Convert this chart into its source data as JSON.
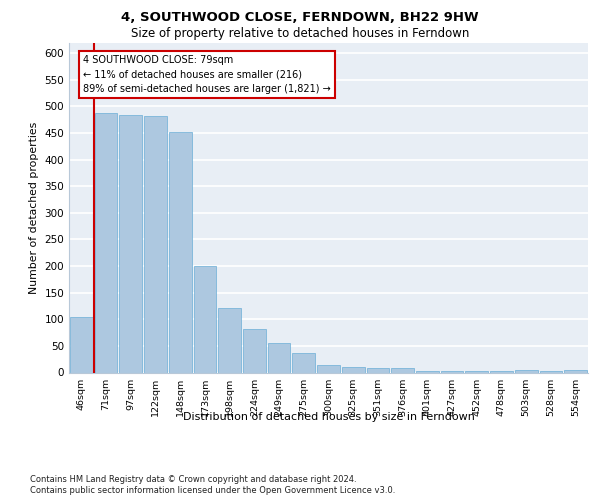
{
  "title1": "4, SOUTHWOOD CLOSE, FERNDOWN, BH22 9HW",
  "title2": "Size of property relative to detached houses in Ferndown",
  "xlabel": "Distribution of detached houses by size in Ferndown",
  "ylabel": "Number of detached properties",
  "footnote1": "Contains HM Land Registry data © Crown copyright and database right 2024.",
  "footnote2": "Contains public sector information licensed under the Open Government Licence v3.0.",
  "bar_color": "#adc8e0",
  "bar_edge_color": "#6baed6",
  "bg_color": "#e8eef5",
  "grid_color": "#ffffff",
  "categories": [
    "46sqm",
    "71sqm",
    "97sqm",
    "122sqm",
    "148sqm",
    "173sqm",
    "198sqm",
    "224sqm",
    "249sqm",
    "275sqm",
    "300sqm",
    "325sqm",
    "351sqm",
    "376sqm",
    "401sqm",
    "427sqm",
    "452sqm",
    "478sqm",
    "503sqm",
    "528sqm",
    "554sqm"
  ],
  "values": [
    105,
    487,
    484,
    481,
    451,
    201,
    121,
    82,
    55,
    37,
    14,
    10,
    8,
    9,
    2,
    2,
    2,
    2,
    5,
    2,
    5
  ],
  "annotation_text1": "4 SOUTHWOOD CLOSE: 79sqm",
  "annotation_text2": "← 11% of detached houses are smaller (216)",
  "annotation_text3": "89% of semi-detached houses are larger (1,821) →",
  "vline_color": "#cc0000",
  "annotation_box_facecolor": "#ffffff",
  "annotation_box_edgecolor": "#cc0000",
  "ylim": [
    0,
    620
  ],
  "yticks": [
    0,
    50,
    100,
    150,
    200,
    250,
    300,
    350,
    400,
    450,
    500,
    550,
    600
  ]
}
